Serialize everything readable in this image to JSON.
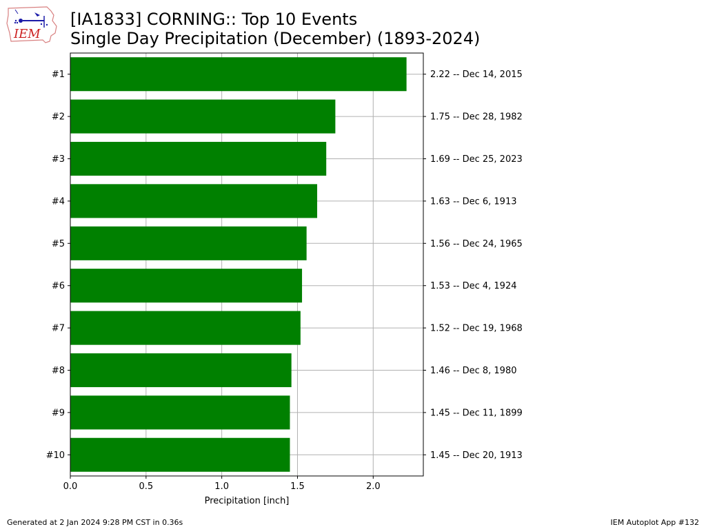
{
  "header": {
    "title_line1": "[IA1833] CORNING:: Top 10 Events",
    "title_line2": "Single Day Precipitation (December) (1893-2024)",
    "logo_text": "IEM"
  },
  "footer": {
    "generated": "Generated at 2 Jan 2024 9:28 PM CST in 0.36s",
    "app": "IEM Autoplot App #132"
  },
  "colors": {
    "bar": "#008000",
    "grid": "#b0b0b0",
    "logo_red": "#cc2222",
    "logo_blue": "#1a1aa8"
  },
  "chart_data": {
    "type": "bar",
    "orientation": "horizontal",
    "categories": [
      "#1",
      "#2",
      "#3",
      "#4",
      "#5",
      "#6",
      "#7",
      "#8",
      "#9",
      "#10"
    ],
    "values": [
      2.22,
      1.75,
      1.69,
      1.63,
      1.56,
      1.53,
      1.52,
      1.46,
      1.45,
      1.45
    ],
    "right_labels": [
      "2.22 -- Dec 14, 2015",
      "1.75 -- Dec 28, 1982",
      "1.69 -- Dec 25, 2023",
      "1.63 -- Dec 6, 1913",
      "1.56 -- Dec 24, 1965",
      "1.53 -- Dec 4, 1924",
      "1.52 -- Dec 19, 1968",
      "1.46 -- Dec 8, 1980",
      "1.45 -- Dec 11, 1899",
      "1.45 -- Dec 20, 1913"
    ],
    "xlabel": "Precipitation [inch]",
    "xlim": [
      0,
      2.331
    ],
    "xticks": [
      0.0,
      0.5,
      1.0,
      1.5,
      2.0
    ],
    "xtick_labels": [
      "0.0",
      "0.5",
      "1.0",
      "1.5",
      "2.0"
    ],
    "grid": true
  }
}
